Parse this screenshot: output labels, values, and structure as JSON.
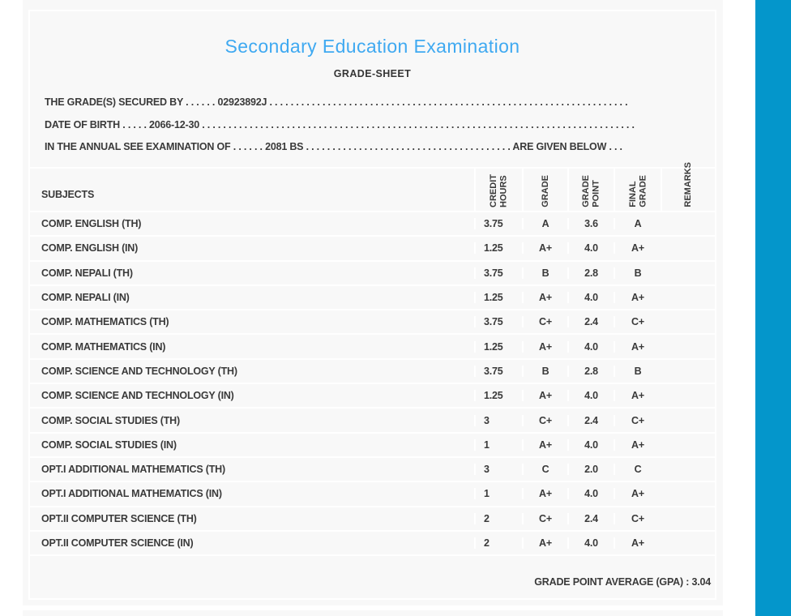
{
  "colors": {
    "title_blue": "#3FA9F1",
    "side_bar_blue": "#0496CB",
    "panel_bg": "#F8F8F8",
    "text": "#3A3A3A"
  },
  "header": {
    "title": "Secondary Education Examination",
    "subtitle": "GRADE-SHEET"
  },
  "info_lines": {
    "grades_secured": {
      "label": "THE GRADE(S) SECURED BY",
      "dots_before": " . . . . . . ",
      "value": "02923892J",
      "dots_after": " . . . . . . . . . . . . . . . . . . . . . . . . . . . . . . . . . . . . . . . . . . . . . . . . . . . . . . . . . . . . . . . . . . . . "
    },
    "date_of_birth": {
      "label": "DATE OF BIRTH",
      "dots_before": " . . . . . ",
      "value": "2066-12-30",
      "dots_after": " . . . . . . . . . . . . . . . . . . . . . . . . . . . . . . . . . . . . . . . . . . . . . . . . . . . . . . . . . . . . . . . . . . . . . . . . . . . . . . . . . . "
    },
    "examination": {
      "label": "IN THE ANNUAL SEE EXAMINATION OF",
      "dots_before": " . . . . . . ",
      "value": "2081 BS",
      "dots_after": " . . . . . . . . . . . . . . . . . . . . . . . . . . . . . . . . . . . . . . . ",
      "suffix": "ARE GIVEN BELOW . . ."
    }
  },
  "table": {
    "subjects_header": "SUBJECTS",
    "columns": [
      {
        "key": "credit-hours",
        "label": "CREDIT\nHOURS"
      },
      {
        "key": "grade",
        "label": "GRADE"
      },
      {
        "key": "grade-point",
        "label": "GRADE\nPOINT"
      },
      {
        "key": "final-grade",
        "label": "FINAL\nGRADE"
      },
      {
        "key": "remarks",
        "label": "REMARKS"
      }
    ],
    "rows": [
      {
        "subject": "COMP. ENGLISH (TH)",
        "credit": "3.75",
        "grade": "A",
        "point": "3.6",
        "final": "A",
        "remarks": ""
      },
      {
        "subject": "COMP. ENGLISH (IN)",
        "credit": "1.25",
        "grade": "A+",
        "point": "4.0",
        "final": "A+",
        "remarks": ""
      },
      {
        "subject": "COMP. NEPALI (TH)",
        "credit": "3.75",
        "grade": "B",
        "point": "2.8",
        "final": "B",
        "remarks": ""
      },
      {
        "subject": "COMP. NEPALI (IN)",
        "credit": "1.25",
        "grade": "A+",
        "point": "4.0",
        "final": "A+",
        "remarks": ""
      },
      {
        "subject": "COMP. MATHEMATICS (TH)",
        "credit": "3.75",
        "grade": "C+",
        "point": "2.4",
        "final": "C+",
        "remarks": ""
      },
      {
        "subject": "COMP. MATHEMATICS (IN)",
        "credit": "1.25",
        "grade": "A+",
        "point": "4.0",
        "final": "A+",
        "remarks": ""
      },
      {
        "subject": "COMP. SCIENCE AND TECHNOLOGY (TH)",
        "credit": "3.75",
        "grade": "B",
        "point": "2.8",
        "final": "B",
        "remarks": ""
      },
      {
        "subject": "COMP. SCIENCE AND TECHNOLOGY (IN)",
        "credit": "1.25",
        "grade": "A+",
        "point": "4.0",
        "final": "A+",
        "remarks": ""
      },
      {
        "subject": "COMP. SOCIAL STUDIES (TH)",
        "credit": "3",
        "grade": "C+",
        "point": "2.4",
        "final": "C+",
        "remarks": ""
      },
      {
        "subject": "COMP. SOCIAL STUDIES (IN)",
        "credit": "1",
        "grade": "A+",
        "point": "4.0",
        "final": "A+",
        "remarks": ""
      },
      {
        "subject": "OPT.I ADDITIONAL MATHEMATICS (TH)",
        "credit": "3",
        "grade": "C",
        "point": "2.0",
        "final": "C",
        "remarks": ""
      },
      {
        "subject": "OPT.I ADDITIONAL MATHEMATICS (IN)",
        "credit": "1",
        "grade": "A+",
        "point": "4.0",
        "final": "A+",
        "remarks": ""
      },
      {
        "subject": "OPT.II COMPUTER SCIENCE (TH)",
        "credit": "2",
        "grade": "C+",
        "point": "2.4",
        "final": "C+",
        "remarks": ""
      },
      {
        "subject": "OPT.II COMPUTER SCIENCE (IN)",
        "credit": "2",
        "grade": "A+",
        "point": "4.0",
        "final": "A+",
        "remarks": ""
      }
    ]
  },
  "footer": {
    "gpa_label": "GRADE POINT AVERAGE (GPA) :",
    "gpa_value": "3.04"
  }
}
